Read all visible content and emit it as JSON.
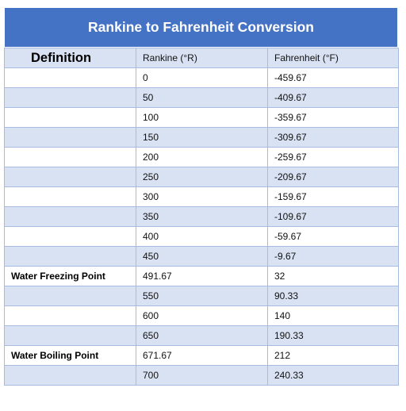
{
  "title": "Rankine to Fahrenheit Conversion",
  "headers": {
    "definition": "Definition",
    "rankine": "Rankine (°R)",
    "fahrenheit": "Fahrenheit (°F)"
  },
  "rows": [
    {
      "definition": "",
      "rankine": "0",
      "fahrenheit": "-459.67"
    },
    {
      "definition": "",
      "rankine": "50",
      "fahrenheit": "-409.67"
    },
    {
      "definition": "",
      "rankine": "100",
      "fahrenheit": "-359.67"
    },
    {
      "definition": "",
      "rankine": "150",
      "fahrenheit": "-309.67"
    },
    {
      "definition": "",
      "rankine": "200",
      "fahrenheit": "-259.67"
    },
    {
      "definition": "",
      "rankine": "250",
      "fahrenheit": "-209.67"
    },
    {
      "definition": "",
      "rankine": "300",
      "fahrenheit": "-159.67"
    },
    {
      "definition": "",
      "rankine": "350",
      "fahrenheit": "-109.67"
    },
    {
      "definition": "",
      "rankine": "400",
      "fahrenheit": "-59.67"
    },
    {
      "definition": "",
      "rankine": "450",
      "fahrenheit": "-9.67"
    },
    {
      "definition": "Water Freezing Point",
      "rankine": "491.67",
      "fahrenheit": "32"
    },
    {
      "definition": "",
      "rankine": "550",
      "fahrenheit": "90.33"
    },
    {
      "definition": "",
      "rankine": "600",
      "fahrenheit": "140"
    },
    {
      "definition": "",
      "rankine": "650",
      "fahrenheit": "190.33"
    },
    {
      "definition": "Water Boiling Point",
      "rankine": "671.67",
      "fahrenheit": "212"
    },
    {
      "definition": "",
      "rankine": "700",
      "fahrenheit": "240.33"
    }
  ],
  "colors": {
    "title_background": "#4472c4",
    "shaded_row": "#d9e2f3",
    "border": "#a7bbe0"
  }
}
